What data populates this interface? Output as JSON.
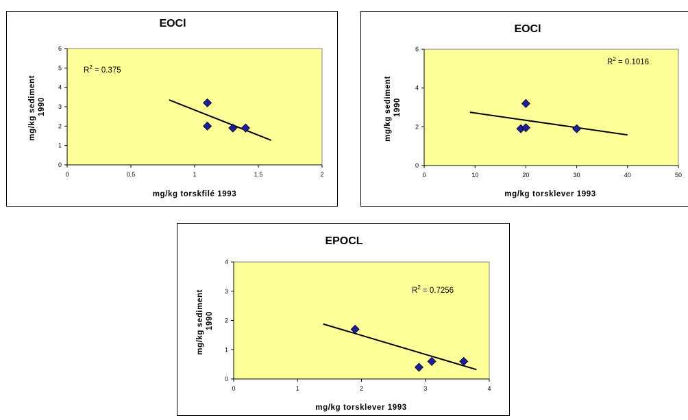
{
  "chart_data": [
    {
      "type": "scatter",
      "title": "EOCl",
      "xlabel": "mg/kg torskfilé 1993",
      "ylabel_line1": "mg/kg sediment",
      "ylabel_line2": "1990",
      "annotation": {
        "label": "R",
        "superscript": "2",
        "value": " = 0.375"
      },
      "xlim": [
        0,
        2
      ],
      "ylim": [
        0,
        6
      ],
      "x_ticks": [
        0,
        0.5,
        1,
        1.5,
        2
      ],
      "x_tick_labels": [
        "0",
        "0.5",
        "1",
        "1.5",
        "2"
      ],
      "y_ticks": [
        0,
        1,
        2,
        3,
        4,
        5,
        6
      ],
      "y_tick_labels": [
        "0",
        "1",
        "2",
        "3",
        "4",
        "5",
        "6"
      ],
      "points": {
        "x": [
          1.1,
          1.1,
          1.3,
          1.4
        ],
        "y": [
          3.2,
          2.0,
          1.9,
          1.9
        ]
      },
      "trendline": {
        "x": [
          0.8,
          1.6
        ],
        "y": [
          3.35,
          1.27
        ]
      },
      "colors": {
        "plot_bg": "#ffff99",
        "marker": "#1f1f8f",
        "trendline": "#000000"
      }
    },
    {
      "type": "scatter",
      "title": "EOCl",
      "xlabel": "mg/kg torsklever 1993",
      "ylabel_line1": "mg/kg sediment",
      "ylabel_line2": "1990",
      "annotation": {
        "label": "R",
        "superscript": "2",
        "value": " = 0.1016"
      },
      "xlim": [
        0,
        50
      ],
      "ylim": [
        0,
        6
      ],
      "x_ticks": [
        0,
        10,
        20,
        30,
        40,
        50
      ],
      "x_tick_labels": [
        "0",
        "10",
        "20",
        "30",
        "40",
        "50"
      ],
      "y_ticks": [
        0,
        2,
        4,
        6
      ],
      "y_tick_labels": [
        "0",
        "2",
        "4",
        "6"
      ],
      "points": {
        "x": [
          19,
          20,
          20,
          30
        ],
        "y": [
          1.9,
          1.95,
          3.2,
          1.9
        ]
      },
      "trendline": {
        "x": [
          9,
          40
        ],
        "y": [
          2.75,
          1.58
        ]
      },
      "colors": {
        "plot_bg": "#ffff99",
        "marker": "#1f1f8f",
        "trendline": "#000000"
      }
    },
    {
      "type": "scatter",
      "title": "EPOCL",
      "xlabel": "mg/kg torsklever 1993",
      "ylabel_line1": "mg/kg sediment",
      "ylabel_line2": "1990",
      "annotation": {
        "label": "R",
        "superscript": "2",
        "value": " = 0.7256"
      },
      "xlim": [
        0,
        4
      ],
      "ylim": [
        0,
        4
      ],
      "x_ticks": [
        0,
        1,
        2,
        3,
        4
      ],
      "x_tick_labels": [
        "0",
        "1",
        "2",
        "3",
        "4"
      ],
      "y_ticks": [
        0,
        1,
        2,
        3,
        4
      ],
      "y_tick_labels": [
        "0",
        "1",
        "2",
        "3",
        "4"
      ],
      "points": {
        "x": [
          1.9,
          2.9,
          3.1,
          3.6
        ],
        "y": [
          1.7,
          0.4,
          0.6,
          0.6
        ]
      },
      "trendline": {
        "x": [
          1.4,
          3.8
        ],
        "y": [
          1.88,
          0.32
        ]
      },
      "colors": {
        "plot_bg": "#ffff99",
        "marker": "#1f1f8f",
        "trendline": "#000000"
      }
    }
  ]
}
